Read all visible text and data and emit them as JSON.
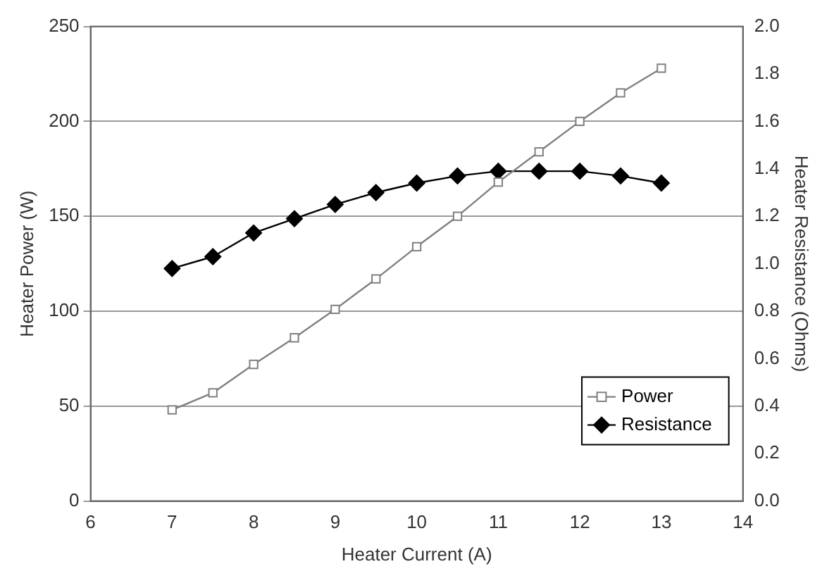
{
  "chart_data": {
    "type": "line",
    "xlabel": "Heater Current (A)",
    "ylabel": "Heater Power (W)",
    "y2label": "Heater Resistance (Ohms)",
    "x": [
      7,
      7.5,
      8,
      8.5,
      9,
      9.5,
      10,
      10.5,
      11,
      11.5,
      12,
      12.5,
      13
    ],
    "series": [
      {
        "name": "Power",
        "color": "#808080",
        "marker": "square",
        "values": [
          48,
          57,
          72,
          86,
          101,
          117,
          134,
          150,
          168,
          184,
          200,
          215,
          228
        ]
      },
      {
        "name": "Resistance",
        "color": "#000000",
        "marker": "diamond",
        "axis": "y2",
        "values": [
          0.98,
          1.03,
          1.13,
          1.19,
          1.25,
          1.3,
          1.34,
          1.37,
          1.39,
          1.39,
          1.39,
          1.37,
          1.34
        ]
      }
    ],
    "xlim": [
      6,
      14
    ],
    "xticks": [
      6,
      7,
      8,
      9,
      10,
      11,
      12,
      13,
      14
    ],
    "ylim": [
      0,
      250
    ],
    "yticks": [
      0,
      50,
      100,
      150,
      200,
      250
    ],
    "y2lim": [
      0,
      2
    ],
    "y2ticks": [
      {
        "value": 0,
        "label": "0.0"
      },
      {
        "value": 0.2,
        "label": "0.2"
      },
      {
        "value": 0.4,
        "label": "0.4"
      },
      {
        "value": 0.6,
        "label": "0.6"
      },
      {
        "value": 0.8,
        "label": "0.8"
      },
      {
        "value": 1,
        "label": "1.0"
      },
      {
        "value": 1.2,
        "label": "1.2"
      },
      {
        "value": 1.4,
        "label": "1.4"
      },
      {
        "value": 1.6,
        "label": "1.6"
      },
      {
        "value": 1.8,
        "label": "1.8"
      },
      {
        "value": 2,
        "label": "2.0"
      }
    ],
    "grid": "y",
    "legend": "bottom right",
    "line_style": "solid"
  }
}
